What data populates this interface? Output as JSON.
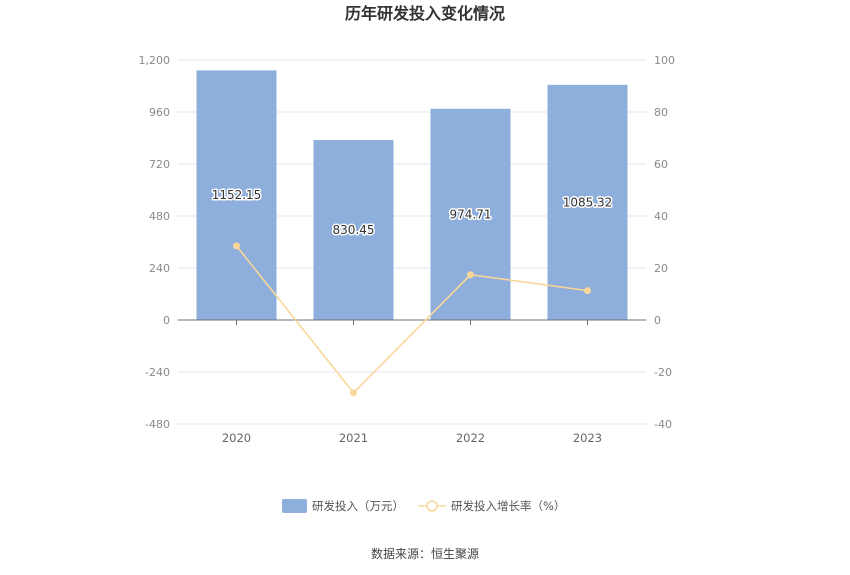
{
  "chart_data": {
    "type": "bar",
    "title": "历年研发投入变化情况",
    "categories": [
      "2020",
      "2021",
      "2022",
      "2023"
    ],
    "series": [
      {
        "name": "研发投入（万元）",
        "type": "bar",
        "axis": "left",
        "color": "#8eaedb",
        "values": [
          1152.15,
          830.45,
          974.71,
          1085.32
        ],
        "labels": [
          "1152.15",
          "830.45",
          "974.71",
          "1085.32"
        ]
      },
      {
        "name": "研发投入增长率（%）",
        "type": "line",
        "axis": "right",
        "color": "#f9d79a",
        "values": [
          28.5,
          -28.0,
          17.4,
          11.3
        ]
      }
    ],
    "y_left": {
      "min": -480,
      "max": 1200,
      "ticks": [
        -480,
        -240,
        0,
        240,
        480,
        720,
        960,
        1200
      ],
      "tick_labels": [
        "-480",
        "-240",
        "0",
        "240",
        "480",
        "720",
        "960",
        "1,200"
      ]
    },
    "y_right": {
      "min": -40,
      "max": 100,
      "ticks": [
        -40,
        -20,
        0,
        20,
        40,
        60,
        80,
        100
      ],
      "tick_labels": [
        "-40",
        "-20",
        "0",
        "20",
        "40",
        "60",
        "80",
        "100"
      ]
    },
    "grid": true,
    "legend_position": "bottom-center"
  },
  "source_text": "数据来源：恒生聚源"
}
